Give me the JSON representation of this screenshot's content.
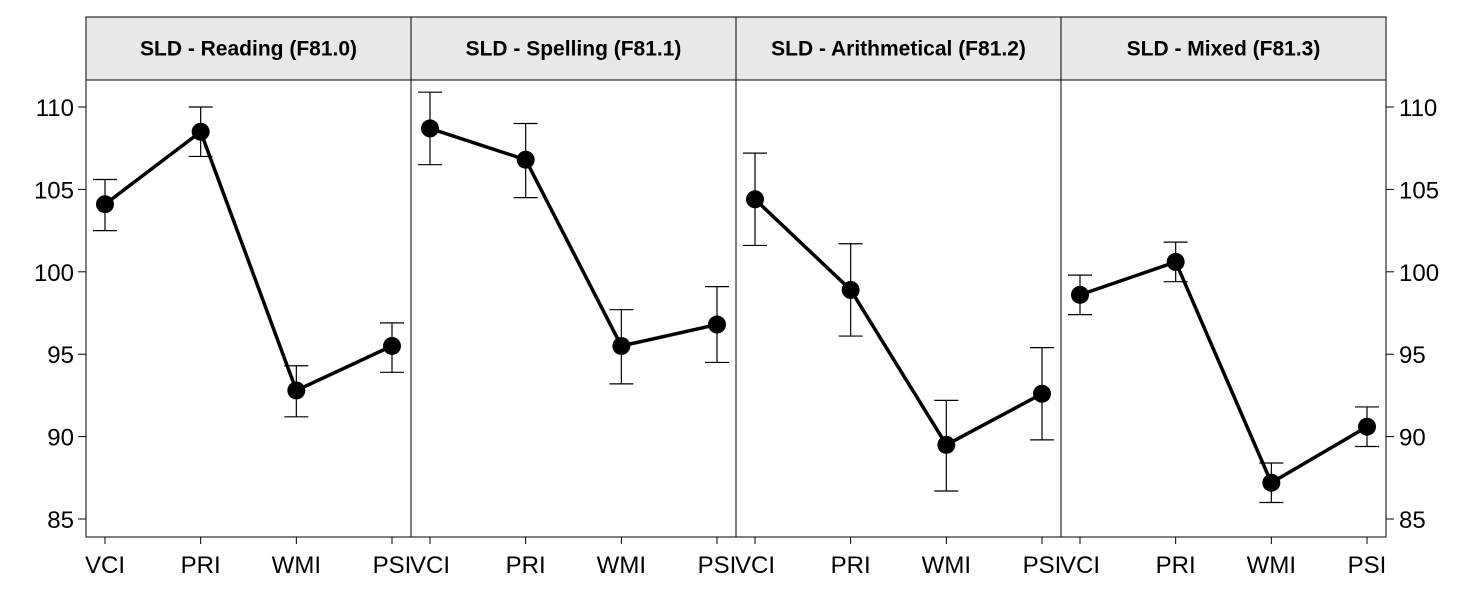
{
  "chart_data": {
    "type": "line",
    "layout": "faceted",
    "categories": [
      "VCI",
      "PRI",
      "WMI",
      "PSI"
    ],
    "ylim": [
      84,
      112
    ],
    "yticks": [
      85,
      90,
      95,
      100,
      105,
      110
    ],
    "grid": false,
    "legend": "none",
    "colors": {
      "strip_background": "#e8e8e8",
      "line": "#000000",
      "point": "#000000",
      "border": "#000000"
    },
    "panels": [
      {
        "title": "SLD - Reading (F81.0)",
        "values": [
          104.1,
          108.5,
          92.8,
          95.5
        ],
        "lower": [
          102.5,
          107.0,
          91.2,
          93.9
        ],
        "upper": [
          105.6,
          110.0,
          94.3,
          96.9
        ]
      },
      {
        "title": "SLD - Spelling (F81.1)",
        "values": [
          108.7,
          106.8,
          95.5,
          96.8
        ],
        "lower": [
          106.5,
          104.5,
          93.2,
          94.5
        ],
        "upper": [
          110.9,
          109.0,
          97.7,
          99.1
        ]
      },
      {
        "title": "SLD - Arithmetical (F81.2)",
        "values": [
          104.4,
          98.9,
          89.5,
          92.6
        ],
        "lower": [
          101.6,
          96.1,
          86.7,
          89.8
        ],
        "upper": [
          107.2,
          101.7,
          92.2,
          95.4
        ]
      },
      {
        "title": "SLD - Mixed (F81.3)",
        "values": [
          98.6,
          100.6,
          87.2,
          90.6
        ],
        "lower": [
          97.4,
          99.4,
          86.0,
          89.4
        ],
        "upper": [
          99.8,
          101.8,
          88.4,
          91.8
        ]
      }
    ]
  }
}
